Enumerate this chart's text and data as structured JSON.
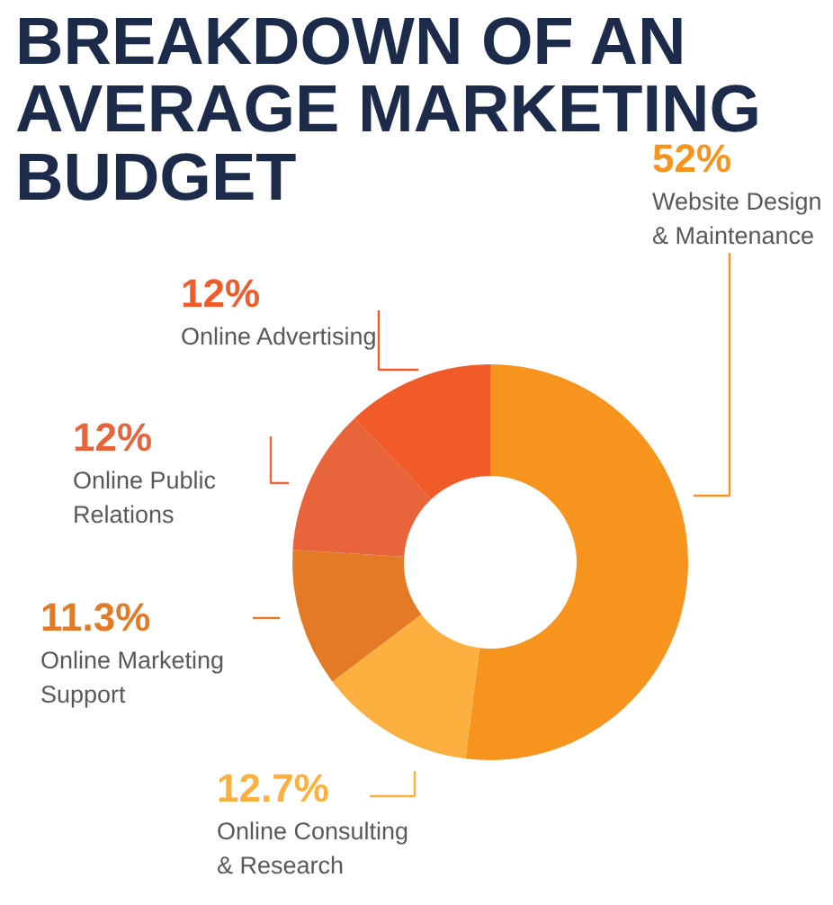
{
  "chart_data": {
    "type": "donut",
    "title": "BREAKDOWN OF AN\nAVERAGE MARKETING\nBUDGET",
    "categories": [
      "Website Design\n& Maintenance",
      "Online Consulting\n& Research",
      "Online Marketing\nSupport",
      "Online Public\nRelations",
      "Online Advertising"
    ],
    "values": [
      52,
      12.7,
      11.3,
      12,
      12
    ],
    "colors": [
      "#f7941d",
      "#fbb040",
      "#e57a26",
      "#e8643a",
      "#f15a29"
    ],
    "value_labels": [
      "52%",
      "12.7%",
      "11.3%",
      "12%",
      "12%"
    ]
  }
}
